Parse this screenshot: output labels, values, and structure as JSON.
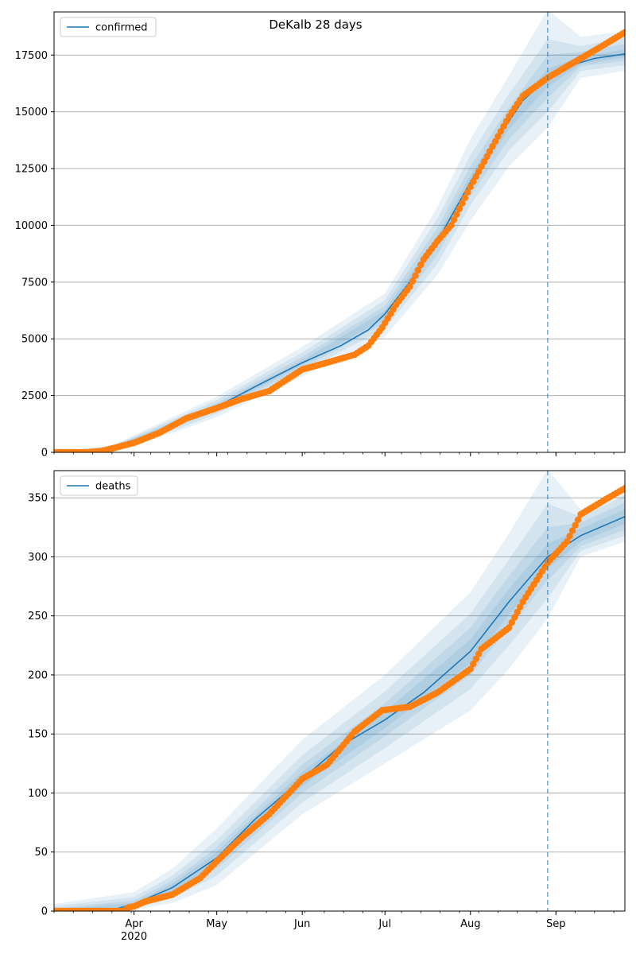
{
  "figure": {
    "title": "DeKalb 28 days"
  },
  "colors": {
    "model_line": "#1f77b4",
    "observed": "#ff7f0e",
    "band": "#1f77b4",
    "grid": "#b0b0b0",
    "forecast_marker": "#1f77b4"
  },
  "chart_data": [
    {
      "type": "line",
      "name": "confirmed-panel",
      "x_axis": {
        "type": "date",
        "range": [
          "2020-03-03",
          "2020-09-26"
        ],
        "ticks": [
          {
            "date": "2020-04-01",
            "label": "Apr",
            "sublabel": "2020"
          },
          {
            "date": "2020-05-01",
            "label": "May"
          },
          {
            "date": "2020-06-01",
            "label": "Jun"
          },
          {
            "date": "2020-07-01",
            "label": "Jul"
          },
          {
            "date": "2020-08-01",
            "label": "Aug"
          },
          {
            "date": "2020-09-01",
            "label": "Sep"
          }
        ],
        "tick_labels_visible": false
      },
      "ylim": [
        0,
        19400
      ],
      "yticks": [
        0,
        2500,
        5000,
        7500,
        10000,
        12500,
        15000,
        17500
      ],
      "grid": "horizontal",
      "legend": {
        "position": "top-left",
        "entries": [
          "confirmed"
        ]
      },
      "forecast_start": "2020-08-29",
      "model": {
        "name": "confirmed",
        "points": [
          [
            "2020-03-03",
            0
          ],
          [
            "2020-03-17",
            50
          ],
          [
            "2020-03-24",
            200
          ],
          [
            "2020-04-01",
            480
          ],
          [
            "2020-04-15",
            1200
          ],
          [
            "2020-05-01",
            2000
          ],
          [
            "2020-05-15",
            2900
          ],
          [
            "2020-06-01",
            3950
          ],
          [
            "2020-06-15",
            4700
          ],
          [
            "2020-06-25",
            5400
          ],
          [
            "2020-07-01",
            6100
          ],
          [
            "2020-07-10",
            7500
          ],
          [
            "2020-07-20",
            9300
          ],
          [
            "2020-08-01",
            11900
          ],
          [
            "2020-08-10",
            13700
          ],
          [
            "2020-08-20",
            15500
          ],
          [
            "2020-08-29",
            16500
          ],
          [
            "2020-09-05",
            17000
          ],
          [
            "2020-09-15",
            17350
          ],
          [
            "2020-09-26",
            17550
          ]
        ],
        "bands": [
          {
            "points": [
              [
                "2020-03-03",
                0,
                20
              ],
              [
                "2020-03-24",
                120,
                300
              ],
              [
                "2020-04-15",
                850,
                1550
              ],
              [
                "2020-05-01",
                1550,
                2450
              ],
              [
                "2020-06-01",
                3350,
                4650
              ],
              [
                "2020-07-01",
                5100,
                7000
              ],
              [
                "2020-07-20",
                7800,
                10800
              ],
              [
                "2020-08-01",
                10200,
                13800
              ],
              [
                "2020-08-15",
                12600,
                16600
              ],
              [
                "2020-08-29",
                14300,
                19500
              ],
              [
                "2020-09-10",
                16500,
                18300
              ],
              [
                "2020-09-26",
                16800,
                18550
              ]
            ]
          },
          {
            "points": [
              [
                "2020-03-03",
                0,
                15
              ],
              [
                "2020-03-24",
                140,
                270
              ],
              [
                "2020-04-15",
                950,
                1450
              ],
              [
                "2020-05-01",
                1700,
                2300
              ],
              [
                "2020-06-01",
                3550,
                4400
              ],
              [
                "2020-07-01",
                5450,
                6700
              ],
              [
                "2020-07-20",
                8300,
                10300
              ],
              [
                "2020-08-01",
                10900,
                13100
              ],
              [
                "2020-08-15",
                13300,
                15800
              ],
              [
                "2020-08-29",
                15000,
                18200
              ],
              [
                "2020-09-10",
                16800,
                17900
              ],
              [
                "2020-09-26",
                17050,
                18250
              ]
            ]
          },
          {
            "points": [
              [
                "2020-03-03",
                0,
                10
              ],
              [
                "2020-03-24",
                160,
                240
              ],
              [
                "2020-04-15",
                1050,
                1350
              ],
              [
                "2020-05-01",
                1820,
                2180
              ],
              [
                "2020-06-01",
                3700,
                4200
              ],
              [
                "2020-07-01",
                5700,
                6450
              ],
              [
                "2020-07-20",
                8700,
                9900
              ],
              [
                "2020-08-01",
                11300,
                12600
              ],
              [
                "2020-08-15",
                13800,
                15200
              ],
              [
                "2020-08-29",
                15600,
                17500
              ],
              [
                "2020-09-10",
                17000,
                17650
              ],
              [
                "2020-09-26",
                17250,
                18000
              ]
            ]
          },
          {
            "points": [
              [
                "2020-03-03",
                0,
                5
              ],
              [
                "2020-03-24",
                180,
                220
              ],
              [
                "2020-04-15",
                1130,
                1270
              ],
              [
                "2020-05-01",
                1920,
                2080
              ],
              [
                "2020-06-01",
                3850,
                4050
              ],
              [
                "2020-07-01",
                5900,
                6250
              ],
              [
                "2020-07-20",
                9050,
                9550
              ],
              [
                "2020-08-01",
                11650,
                12200
              ],
              [
                "2020-08-15",
                14250,
                14850
              ],
              [
                "2020-08-29",
                16100,
                16900
              ],
              [
                "2020-09-10",
                17100,
                17400
              ],
              [
                "2020-09-26",
                17400,
                17750
              ]
            ]
          }
        ]
      },
      "observed": {
        "name": "confirmed observed",
        "points": [
          [
            "2020-03-03",
            0
          ],
          [
            "2020-03-15",
            5
          ],
          [
            "2020-03-20",
            50
          ],
          [
            "2020-03-25",
            200
          ],
          [
            "2020-04-01",
            420
          ],
          [
            "2020-04-10",
            850
          ],
          [
            "2020-04-20",
            1500
          ],
          [
            "2020-05-01",
            1950
          ],
          [
            "2020-05-10",
            2350
          ],
          [
            "2020-05-20",
            2700
          ],
          [
            "2020-06-01",
            3650
          ],
          [
            "2020-06-10",
            3950
          ],
          [
            "2020-06-20",
            4300
          ],
          [
            "2020-06-25",
            4700
          ],
          [
            "2020-06-30",
            5500
          ],
          [
            "2020-07-05",
            6500
          ],
          [
            "2020-07-10",
            7300
          ],
          [
            "2020-07-15",
            8500
          ],
          [
            "2020-07-20",
            9300
          ],
          [
            "2020-07-25",
            10000
          ],
          [
            "2020-08-01",
            11700
          ],
          [
            "2020-08-10",
            13700
          ],
          [
            "2020-08-15",
            14800
          ],
          [
            "2020-08-20",
            15700
          ],
          [
            "2020-08-29",
            16500
          ],
          [
            "2020-09-05",
            17000
          ],
          [
            "2020-09-15",
            17700
          ],
          [
            "2020-09-26",
            18500
          ]
        ]
      }
    },
    {
      "type": "line",
      "name": "deaths-panel",
      "x_axis": {
        "type": "date",
        "range": [
          "2020-03-03",
          "2020-09-26"
        ],
        "ticks": [
          {
            "date": "2020-04-01",
            "label": "Apr",
            "sublabel": "2020"
          },
          {
            "date": "2020-05-01",
            "label": "May"
          },
          {
            "date": "2020-06-01",
            "label": "Jun"
          },
          {
            "date": "2020-07-01",
            "label": "Jul"
          },
          {
            "date": "2020-08-01",
            "label": "Aug"
          },
          {
            "date": "2020-09-01",
            "label": "Sep"
          }
        ],
        "tick_labels_visible": true
      },
      "ylim": [
        0,
        373
      ],
      "yticks": [
        0,
        50,
        100,
        150,
        200,
        250,
        300,
        350
      ],
      "grid": "horizontal",
      "legend": {
        "position": "top-left",
        "entries": [
          "deaths"
        ]
      },
      "forecast_start": "2020-08-29",
      "model": {
        "name": "deaths",
        "points": [
          [
            "2020-03-03",
            0
          ],
          [
            "2020-03-24",
            1
          ],
          [
            "2020-04-01",
            6
          ],
          [
            "2020-04-15",
            20
          ],
          [
            "2020-05-01",
            45
          ],
          [
            "2020-05-15",
            78
          ],
          [
            "2020-06-01",
            112
          ],
          [
            "2020-06-15",
            140
          ],
          [
            "2020-07-01",
            162
          ],
          [
            "2020-07-15",
            185
          ],
          [
            "2020-08-01",
            220
          ],
          [
            "2020-08-15",
            262
          ],
          [
            "2020-08-29",
            300
          ],
          [
            "2020-09-10",
            318
          ],
          [
            "2020-09-26",
            334
          ]
        ],
        "bands": [
          {
            "points": [
              [
                "2020-03-03",
                0,
                6
              ],
              [
                "2020-04-01",
                1,
                16
              ],
              [
                "2020-04-15",
                7,
                36
              ],
              [
                "2020-05-01",
                22,
                70
              ],
              [
                "2020-06-01",
                82,
                145
              ],
              [
                "2020-07-01",
                125,
                200
              ],
              [
                "2020-08-01",
                170,
                270
              ],
              [
                "2020-08-15",
                205,
                320
              ],
              [
                "2020-08-29",
                248,
                374
              ],
              [
                "2020-09-10",
                300,
                340
              ],
              [
                "2020-09-26",
                313,
                360
              ]
            ]
          },
          {
            "points": [
              [
                "2020-03-03",
                0,
                4
              ],
              [
                "2020-04-01",
                2,
                12
              ],
              [
                "2020-04-15",
                11,
                30
              ],
              [
                "2020-05-01",
                30,
                60
              ],
              [
                "2020-06-01",
                92,
                132
              ],
              [
                "2020-07-01",
                138,
                186
              ],
              [
                "2020-08-01",
                188,
                252
              ],
              [
                "2020-08-15",
                225,
                298
              ],
              [
                "2020-08-29",
                265,
                345
              ],
              [
                "2020-09-10",
                305,
                334
              ],
              [
                "2020-09-26",
                318,
                352
              ]
            ]
          },
          {
            "points": [
              [
                "2020-03-03",
                0,
                2
              ],
              [
                "2020-04-01",
                3,
                9
              ],
              [
                "2020-04-15",
                14,
                26
              ],
              [
                "2020-05-01",
                36,
                54
              ],
              [
                "2020-06-01",
                100,
                124
              ],
              [
                "2020-07-01",
                148,
                176
              ],
              [
                "2020-08-01",
                200,
                240
              ],
              [
                "2020-08-15",
                240,
                284
              ],
              [
                "2020-08-29",
                280,
                325
              ],
              [
                "2020-09-10",
                309,
                329
              ],
              [
                "2020-09-26",
                323,
                346
              ]
            ]
          },
          {
            "points": [
              [
                "2020-03-03",
                0,
                1
              ],
              [
                "2020-04-01",
                4,
                7
              ],
              [
                "2020-04-15",
                17,
                23
              ],
              [
                "2020-05-01",
                40,
                50
              ],
              [
                "2020-06-01",
                106,
                118
              ],
              [
                "2020-07-01",
                155,
                169
              ],
              [
                "2020-08-01",
                210,
                230
              ],
              [
                "2020-08-15",
                251,
                273
              ],
              [
                "2020-08-29",
                290,
                311
              ],
              [
                "2020-09-10",
                313,
                324
              ],
              [
                "2020-09-26",
                328,
                340
              ]
            ]
          }
        ]
      },
      "observed": {
        "name": "deaths observed",
        "points": [
          [
            "2020-03-03",
            0
          ],
          [
            "2020-03-28",
            0
          ],
          [
            "2020-03-30",
            3
          ],
          [
            "2020-04-01",
            4
          ],
          [
            "2020-04-05",
            8
          ],
          [
            "2020-04-15",
            14
          ],
          [
            "2020-04-25",
            28
          ],
          [
            "2020-05-01",
            42
          ],
          [
            "2020-05-10",
            62
          ],
          [
            "2020-05-20",
            82
          ],
          [
            "2020-06-01",
            112
          ],
          [
            "2020-06-10",
            124
          ],
          [
            "2020-06-20",
            152
          ],
          [
            "2020-06-30",
            170
          ],
          [
            "2020-07-10",
            173
          ],
          [
            "2020-07-20",
            185
          ],
          [
            "2020-08-01",
            205
          ],
          [
            "2020-08-05",
            222
          ],
          [
            "2020-08-15",
            240
          ],
          [
            "2020-08-20",
            262
          ],
          [
            "2020-08-29",
            295
          ],
          [
            "2020-09-05",
            313
          ],
          [
            "2020-09-10",
            336
          ],
          [
            "2020-09-20",
            350
          ],
          [
            "2020-09-26",
            358
          ]
        ]
      }
    }
  ]
}
